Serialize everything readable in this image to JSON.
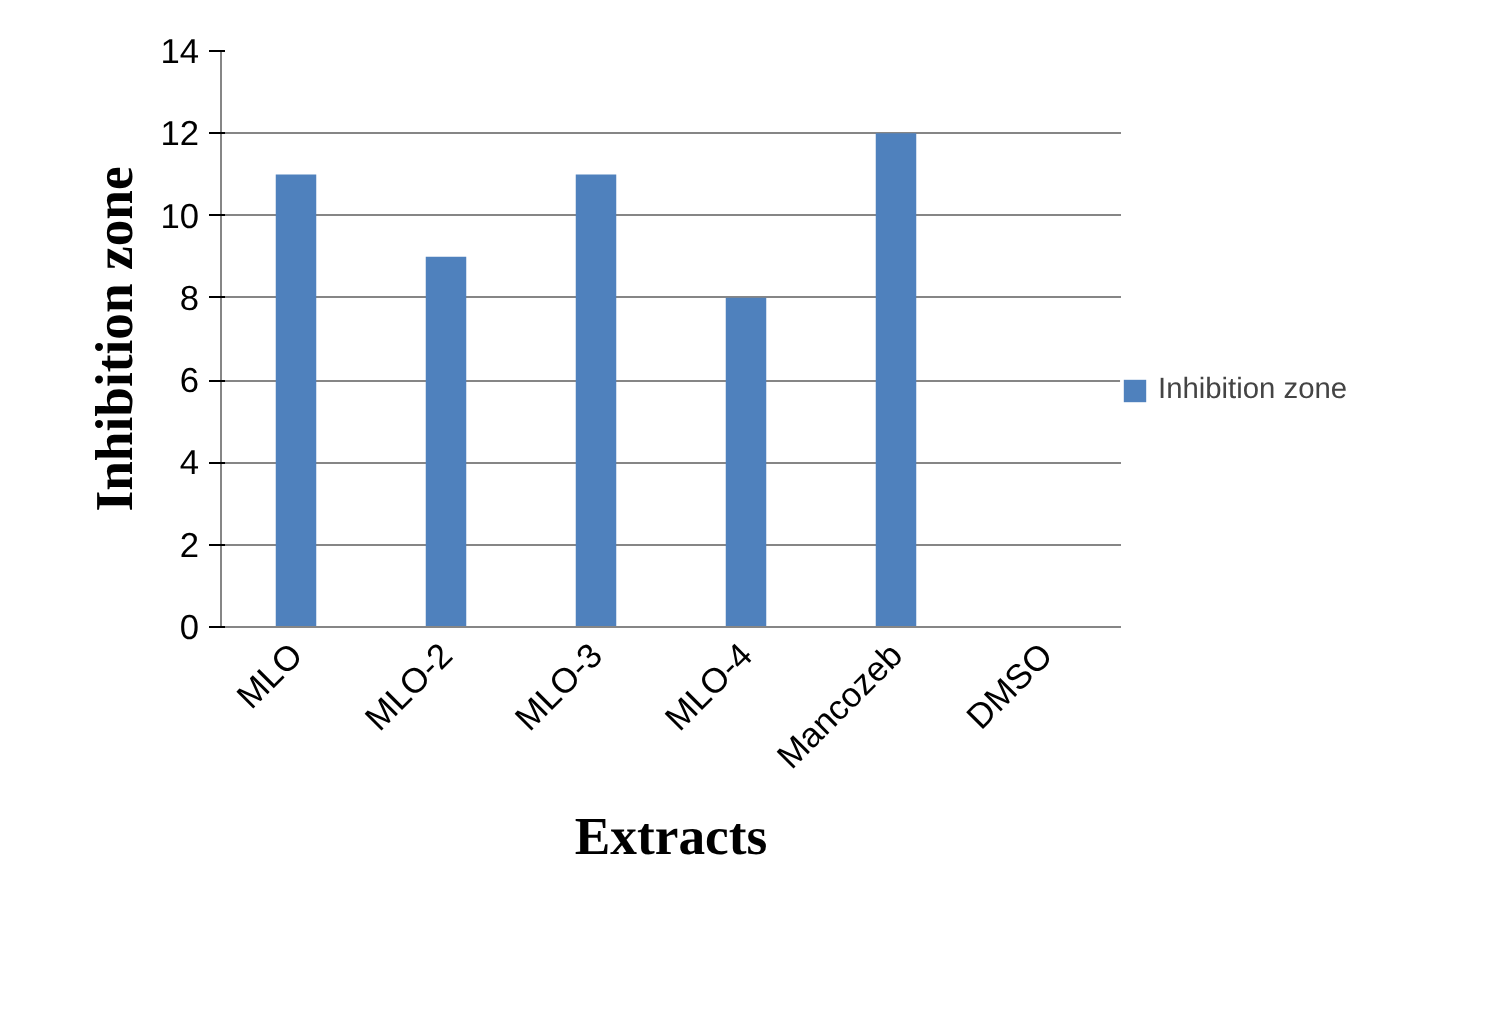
{
  "chart_data": {
    "type": "bar",
    "xlabel": "Extracts",
    "ylabel": "Inhibition zone",
    "categories": [
      "MLO",
      "MLO-2",
      "MLO-3",
      "MLO-4",
      "Mancozeb",
      "DMSO"
    ],
    "series": [
      {
        "name": "Inhibition zone",
        "color": "#4f81bd",
        "values": [
          11,
          9,
          11,
          8,
          12,
          0
        ]
      }
    ],
    "ylim": [
      0,
      14
    ],
    "yticks": [
      0,
      2,
      4,
      6,
      8,
      10,
      12,
      14
    ],
    "grid": "y",
    "legend": "right"
  }
}
